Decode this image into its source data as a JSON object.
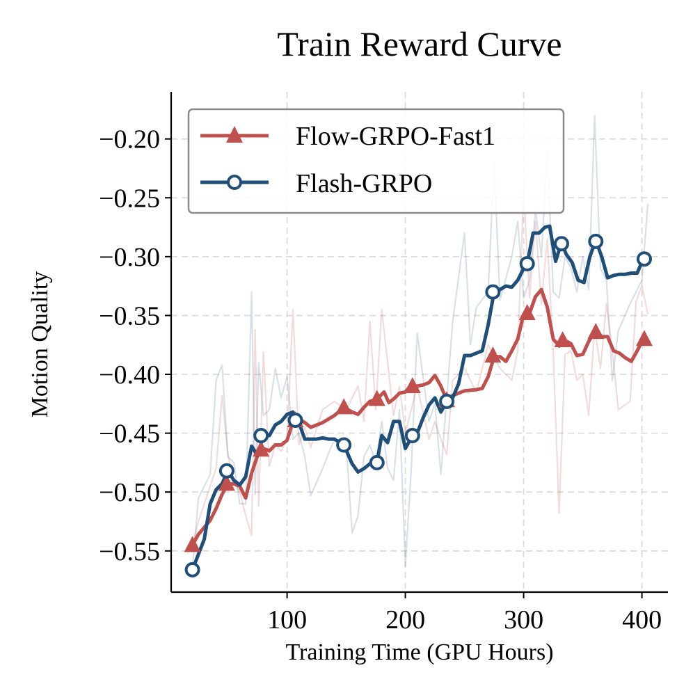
{
  "chart_data": {
    "type": "line",
    "title": "Train Reward Curve",
    "xlabel": "Training Time (GPU Hours)",
    "ylabel": "Motion Quality",
    "xlim": [
      2,
      422
    ],
    "ylim": [
      -0.585,
      -0.16
    ],
    "xticks": [
      100,
      200,
      300,
      400
    ],
    "xtick_labels": [
      "100",
      "200",
      "300",
      "400"
    ],
    "yticks": [
      -0.55,
      -0.5,
      -0.45,
      -0.4,
      -0.35,
      -0.3,
      -0.25,
      -0.2
    ],
    "ytick_labels": [
      "−0.55",
      "−0.50",
      "−0.45",
      "−0.40",
      "−0.35",
      "−0.30",
      "−0.25",
      "−0.20"
    ],
    "grid": true,
    "legend_position": "top-left",
    "series": [
      {
        "name": "Flow-GRPO-Fast1",
        "color": "#c0504d",
        "marker": "triangle",
        "smoothed": {
          "x": [
            20,
            25,
            30,
            35,
            40,
            45,
            50,
            55,
            60,
            65,
            70,
            75,
            80,
            85,
            90,
            95,
            100,
            105,
            110,
            115,
            120,
            130,
            140,
            148,
            155,
            160,
            165,
            170,
            176,
            182,
            186,
            190,
            195,
            200,
            205,
            210,
            215,
            220,
            225,
            230,
            235,
            240,
            250,
            260,
            265,
            270,
            275,
            280,
            285,
            290,
            295,
            300,
            305,
            310,
            315,
            320,
            325,
            330,
            333,
            340,
            345,
            350,
            355,
            361,
            366,
            371,
            376,
            381,
            386,
            391,
            396,
            401
          ],
          "y": [
            -0.545,
            -0.536,
            -0.53,
            -0.524,
            -0.514,
            -0.502,
            -0.493,
            -0.493,
            -0.495,
            -0.505,
            -0.484,
            -0.469,
            -0.463,
            -0.465,
            -0.46,
            -0.46,
            -0.456,
            -0.44,
            -0.438,
            -0.441,
            -0.445,
            -0.441,
            -0.435,
            -0.428,
            -0.432,
            -0.434,
            -0.428,
            -0.423,
            -0.421,
            -0.415,
            -0.424,
            -0.421,
            -0.416,
            -0.415,
            -0.409,
            -0.41,
            -0.409,
            -0.407,
            -0.401,
            -0.41,
            -0.422,
            -0.418,
            -0.414,
            -0.413,
            -0.412,
            -0.402,
            -0.385,
            -0.385,
            -0.389,
            -0.38,
            -0.37,
            -0.349,
            -0.348,
            -0.334,
            -0.328,
            -0.343,
            -0.37,
            -0.376,
            -0.37,
            -0.374,
            -0.384,
            -0.383,
            -0.372,
            -0.362,
            -0.368,
            -0.368,
            -0.38,
            -0.382,
            -0.386,
            -0.389,
            -0.38,
            -0.37
          ]
        },
        "markers": {
          "x": [
            20,
            49,
            78,
            107,
            148,
            176,
            206,
            235,
            274,
            303,
            333,
            361,
            402
          ],
          "y": [
            -0.545,
            -0.493,
            -0.464,
            -0.439,
            -0.428,
            -0.421,
            -0.41,
            -0.422,
            -0.384,
            -0.348,
            -0.371,
            -0.364,
            -0.37
          ]
        },
        "raw": {
          "x": [
            20,
            25,
            30,
            35,
            40,
            45,
            50,
            55,
            60,
            65,
            70,
            73,
            76,
            80,
            85,
            90,
            95,
            100,
            105,
            110,
            115,
            120,
            130,
            140,
            150,
            160,
            165,
            170,
            175,
            180,
            190,
            195,
            200,
            210,
            220,
            225,
            230,
            235,
            240,
            250,
            260,
            270,
            280,
            290,
            295,
            300,
            305,
            310,
            315,
            320,
            325,
            330,
            335,
            340,
            345,
            350,
            355,
            360,
            365,
            370,
            375,
            380,
            390,
            395,
            400,
            405
          ],
          "y": [
            -0.545,
            -0.525,
            -0.51,
            -0.495,
            -0.48,
            -0.418,
            -0.468,
            -0.492,
            -0.5,
            -0.52,
            -0.537,
            -0.362,
            -0.512,
            -0.381,
            -0.478,
            -0.46,
            -0.465,
            -0.455,
            -0.345,
            -0.46,
            -0.445,
            -0.462,
            -0.43,
            -0.423,
            -0.43,
            -0.41,
            -0.44,
            -0.355,
            -0.43,
            -0.345,
            -0.435,
            -0.41,
            -0.45,
            -0.41,
            -0.455,
            -0.44,
            -0.455,
            -0.468,
            -0.405,
            -0.395,
            -0.415,
            -0.375,
            -0.395,
            -0.405,
            -0.38,
            -0.245,
            -0.335,
            -0.27,
            -0.34,
            -0.285,
            -0.38,
            -0.518,
            -0.383,
            -0.38,
            -0.405,
            -0.4,
            -0.435,
            -0.36,
            -0.395,
            -0.34,
            -0.38,
            -0.43,
            -0.423,
            -0.338,
            -0.325,
            -0.349
          ]
        }
      },
      {
        "name": "Flash-GRPO",
        "color": "#1f4e79",
        "marker": "circle",
        "smoothed": {
          "x": [
            20,
            25,
            30,
            35,
            40,
            45,
            50,
            55,
            60,
            65,
            70,
            75,
            80,
            85,
            90,
            95,
            100,
            105,
            110,
            115,
            120,
            125,
            130,
            135,
            140,
            148,
            155,
            160,
            165,
            170,
            176,
            180,
            185,
            190,
            195,
            200,
            206,
            210,
            215,
            220,
            225,
            230,
            235,
            240,
            245,
            250,
            255,
            260,
            265,
            270,
            275,
            280,
            285,
            290,
            295,
            300,
            303,
            308,
            313,
            318,
            322,
            327,
            332,
            336,
            341,
            346,
            351,
            356,
            361,
            366,
            371,
            376,
            381,
            386,
            391,
            396,
            401
          ],
          "y": [
            -0.566,
            -0.553,
            -0.54,
            -0.51,
            -0.498,
            -0.493,
            -0.482,
            -0.49,
            -0.494,
            -0.487,
            -0.461,
            -0.469,
            -0.452,
            -0.452,
            -0.443,
            -0.44,
            -0.434,
            -0.432,
            -0.441,
            -0.455,
            -0.455,
            -0.455,
            -0.454,
            -0.455,
            -0.455,
            -0.46,
            -0.476,
            -0.483,
            -0.48,
            -0.476,
            -0.475,
            -0.452,
            -0.458,
            -0.44,
            -0.44,
            -0.463,
            -0.452,
            -0.45,
            -0.437,
            -0.426,
            -0.42,
            -0.432,
            -0.423,
            -0.42,
            -0.408,
            -0.384,
            -0.384,
            -0.382,
            -0.38,
            -0.358,
            -0.33,
            -0.328,
            -0.325,
            -0.326,
            -0.32,
            -0.31,
            -0.306,
            -0.28,
            -0.28,
            -0.275,
            -0.274,
            -0.304,
            -0.288,
            -0.298,
            -0.305,
            -0.32,
            -0.322,
            -0.3,
            -0.286,
            -0.3,
            -0.318,
            -0.316,
            -0.315,
            -0.315,
            -0.314,
            -0.314,
            -0.302
          ]
        },
        "markers": {
          "x": [
            20,
            49,
            78,
            107,
            148,
            176,
            206,
            235,
            274,
            303,
            332,
            361,
            402
          ],
          "y": [
            -0.566,
            -0.482,
            -0.452,
            -0.439,
            -0.46,
            -0.475,
            -0.452,
            -0.423,
            -0.33,
            -0.306,
            -0.289,
            -0.287,
            -0.302
          ]
        },
        "raw": {
          "x": [
            20,
            25,
            30,
            35,
            40,
            45,
            50,
            55,
            60,
            65,
            70,
            73,
            76,
            80,
            85,
            90,
            95,
            100,
            105,
            110,
            115,
            120,
            130,
            140,
            150,
            155,
            160,
            165,
            170,
            175,
            180,
            185,
            190,
            195,
            200,
            205,
            210,
            220,
            225,
            230,
            235,
            240,
            250,
            255,
            260,
            270,
            275,
            280,
            290,
            295,
            300,
            305,
            310,
            315,
            320,
            325,
            330,
            335,
            340,
            345,
            350,
            355,
            360,
            365,
            370,
            375,
            380,
            390,
            395,
            400,
            405
          ],
          "y": [
            -0.565,
            -0.505,
            -0.495,
            -0.485,
            -0.405,
            -0.392,
            -0.47,
            -0.475,
            -0.51,
            -0.51,
            -0.33,
            -0.502,
            -0.39,
            -0.435,
            -0.43,
            -0.395,
            -0.42,
            -0.402,
            -0.455,
            -0.45,
            -0.47,
            -0.503,
            -0.48,
            -0.455,
            -0.46,
            -0.535,
            -0.52,
            -0.47,
            -0.46,
            -0.475,
            -0.44,
            -0.48,
            -0.49,
            -0.43,
            -0.563,
            -0.48,
            -0.365,
            -0.44,
            -0.425,
            -0.485,
            -0.42,
            -0.355,
            -0.28,
            -0.375,
            -0.343,
            -0.33,
            -0.22,
            -0.337,
            -0.3,
            -0.27,
            -0.335,
            -0.32,
            -0.26,
            -0.3,
            -0.21,
            -0.33,
            -0.335,
            -0.3,
            -0.31,
            -0.33,
            -0.3,
            -0.328,
            -0.18,
            -0.31,
            -0.32,
            -0.405,
            -0.363,
            -0.34,
            -0.33,
            -0.32,
            -0.255
          ]
        }
      }
    ]
  }
}
